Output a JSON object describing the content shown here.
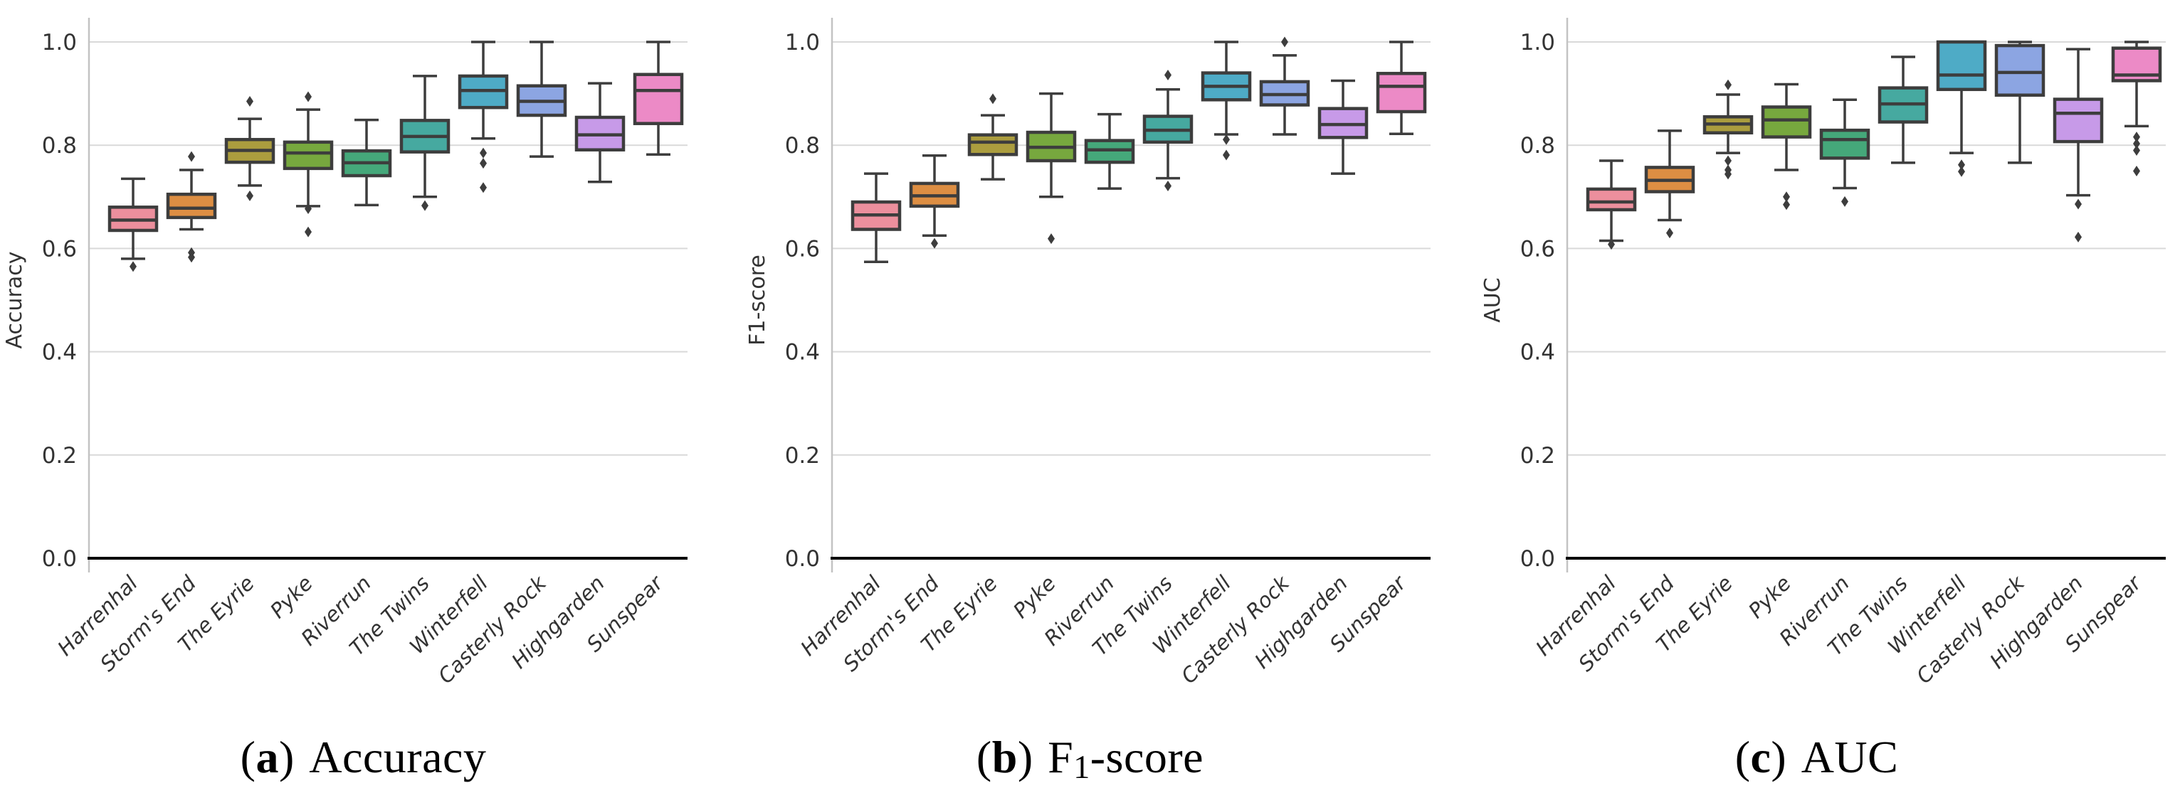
{
  "page": {
    "background": "#ffffff"
  },
  "style": {
    "edge_color": "#3d3d3d",
    "median_color": "#3d3d3d",
    "whisker_color": "#3d3d3d",
    "flier_color": "#3d3d3d",
    "grid_color": "#d9d9d9",
    "spine_color": "#c3c3c3",
    "baseline_color": "#000000",
    "tick_text_color": "#333333",
    "label_text_color": "#333333",
    "palette": [
      "#ec8f9d",
      "#dd8e43",
      "#ab9d3e",
      "#77a83e",
      "#45a87a",
      "#46a9a0",
      "#4eabc6",
      "#8ca5e2",
      "#c79ae8",
      "#ec8ac6"
    ]
  },
  "categories": [
    "Harrenhal",
    "Storm's End",
    "The Eyrie",
    "Pyke",
    "Riverrun",
    "The Twins",
    "Winterfell",
    "Casterly Rock",
    "Highgarden",
    "Sunspear"
  ],
  "y_axis": {
    "range": [
      0.0,
      1.05
    ],
    "ticks": [
      {
        "label": "1.0",
        "value": 1.0
      },
      {
        "label": "0.8",
        "value": 0.8
      },
      {
        "label": "0.6",
        "value": 0.6
      },
      {
        "label": "0.4",
        "value": 0.4
      },
      {
        "label": "0.2",
        "value": 0.2
      },
      {
        "label": "0.0",
        "value": 0.0
      }
    ]
  },
  "chart_data": [
    {
      "type": "box",
      "panel": "a",
      "ylabel": "Accuracy",
      "caption": {
        "open": "(",
        "index": "a",
        "close": ")",
        "prefix": "Accuracy",
        "sub": "",
        "suffix": ""
      },
      "ylim": [
        0.0,
        1.05
      ],
      "grid": true,
      "legend": "none",
      "categories": [
        "Harrenhal",
        "Storm's End",
        "The Eyrie",
        "Pyke",
        "Riverrun",
        "The Twins",
        "Winterfell",
        "Casterly Rock",
        "Highgarden",
        "Sunspear"
      ],
      "series": [
        {
          "name": "Harrenhal",
          "color": "#ec8f9d",
          "whislo": 0.58,
          "q1": 0.635,
          "med": 0.655,
          "q3": 0.68,
          "whishi": 0.735,
          "outliers": [
            0.565
          ]
        },
        {
          "name": "Storm's End",
          "color": "#dd8e43",
          "whislo": 0.637,
          "q1": 0.66,
          "med": 0.678,
          "q3": 0.705,
          "whishi": 0.752,
          "outliers": [
            0.778,
            0.592,
            0.583
          ]
        },
        {
          "name": "The Eyrie",
          "color": "#ab9d3e",
          "whislo": 0.722,
          "q1": 0.767,
          "med": 0.79,
          "q3": 0.811,
          "whishi": 0.851,
          "outliers": [
            0.885,
            0.702
          ]
        },
        {
          "name": "Pyke",
          "color": "#77a83e",
          "whislo": 0.682,
          "q1": 0.755,
          "med": 0.785,
          "q3": 0.806,
          "whishi": 0.869,
          "outliers": [
            0.894,
            0.677,
            0.632
          ]
        },
        {
          "name": "Riverrun",
          "color": "#45a87a",
          "whislo": 0.684,
          "q1": 0.741,
          "med": 0.766,
          "q3": 0.789,
          "whishi": 0.849,
          "outliers": []
        },
        {
          "name": "The Twins",
          "color": "#46a9a0",
          "whislo": 0.7,
          "q1": 0.787,
          "med": 0.817,
          "q3": 0.848,
          "whishi": 0.934,
          "outliers": [
            0.683
          ]
        },
        {
          "name": "Winterfell",
          "color": "#4eabc6",
          "whislo": 0.813,
          "q1": 0.873,
          "med": 0.906,
          "q3": 0.934,
          "whishi": 1.0,
          "outliers": [
            0.785,
            0.765,
            0.718
          ]
        },
        {
          "name": "Casterly Rock",
          "color": "#8ca5e2",
          "whislo": 0.778,
          "q1": 0.858,
          "med": 0.885,
          "q3": 0.915,
          "whishi": 1.0,
          "outliers": []
        },
        {
          "name": "Highgarden",
          "color": "#c79ae8",
          "whislo": 0.729,
          "q1": 0.791,
          "med": 0.82,
          "q3": 0.854,
          "whishi": 0.92,
          "outliers": []
        },
        {
          "name": "Sunspear",
          "color": "#ec8ac6",
          "whislo": 0.782,
          "q1": 0.842,
          "med": 0.906,
          "q3": 0.937,
          "whishi": 1.0,
          "outliers": []
        }
      ]
    },
    {
      "type": "box",
      "panel": "b",
      "ylabel": "F1-score",
      "caption": {
        "open": "(",
        "index": "b",
        "close": ")",
        "prefix": "F",
        "sub": "1",
        "suffix": "-score"
      },
      "ylim": [
        0.0,
        1.05
      ],
      "grid": true,
      "legend": "none",
      "categories": [
        "Harrenhal",
        "Storm's End",
        "The Eyrie",
        "Pyke",
        "Riverrun",
        "The Twins",
        "Winterfell",
        "Casterly Rock",
        "Highgarden",
        "Sunspear"
      ],
      "series": [
        {
          "name": "Harrenhal",
          "color": "#ec8f9d",
          "whislo": 0.574,
          "q1": 0.637,
          "med": 0.665,
          "q3": 0.69,
          "whishi": 0.745,
          "outliers": []
        },
        {
          "name": "Storm's End",
          "color": "#dd8e43",
          "whislo": 0.625,
          "q1": 0.682,
          "med": 0.702,
          "q3": 0.726,
          "whishi": 0.78,
          "outliers": [
            0.61
          ]
        },
        {
          "name": "The Eyrie",
          "color": "#ab9d3e",
          "whislo": 0.734,
          "q1": 0.782,
          "med": 0.806,
          "q3": 0.82,
          "whishi": 0.858,
          "outliers": [
            0.89
          ]
        },
        {
          "name": "Pyke",
          "color": "#77a83e",
          "whislo": 0.7,
          "q1": 0.77,
          "med": 0.796,
          "q3": 0.825,
          "whishi": 0.9,
          "outliers": [
            0.619
          ]
        },
        {
          "name": "Riverrun",
          "color": "#45a87a",
          "whislo": 0.716,
          "q1": 0.767,
          "med": 0.791,
          "q3": 0.809,
          "whishi": 0.86,
          "outliers": []
        },
        {
          "name": "The Twins",
          "color": "#46a9a0",
          "whislo": 0.736,
          "q1": 0.806,
          "med": 0.829,
          "q3": 0.856,
          "whishi": 0.908,
          "outliers": [
            0.936,
            0.721
          ]
        },
        {
          "name": "Winterfell",
          "color": "#4eabc6",
          "whislo": 0.821,
          "q1": 0.888,
          "med": 0.914,
          "q3": 0.94,
          "whishi": 1.0,
          "outliers": [
            0.811,
            0.781
          ]
        },
        {
          "name": "Casterly Rock",
          "color": "#8ca5e2",
          "whislo": 0.821,
          "q1": 0.878,
          "med": 0.898,
          "q3": 0.923,
          "whishi": 0.974,
          "outliers": [
            1.0
          ]
        },
        {
          "name": "Highgarden",
          "color": "#c79ae8",
          "whislo": 0.745,
          "q1": 0.815,
          "med": 0.84,
          "q3": 0.871,
          "whishi": 0.925,
          "outliers": []
        },
        {
          "name": "Sunspear",
          "color": "#ec8ac6",
          "whislo": 0.822,
          "q1": 0.865,
          "med": 0.914,
          "q3": 0.939,
          "whishi": 1.0,
          "outliers": []
        }
      ]
    },
    {
      "type": "box",
      "panel": "c",
      "ylabel": "AUC",
      "caption": {
        "open": "(",
        "index": "c",
        "close": ")",
        "prefix": "AUC",
        "sub": "",
        "suffix": ""
      },
      "ylim": [
        0.0,
        1.05
      ],
      "grid": true,
      "legend": "none",
      "categories": [
        "Harrenhal",
        "Storm's End",
        "The Eyrie",
        "Pyke",
        "Riverrun",
        "The Twins",
        "Winterfell",
        "Casterly Rock",
        "Highgarden",
        "Sunspear"
      ],
      "series": [
        {
          "name": "Harrenhal",
          "color": "#ec8f9d",
          "whislo": 0.615,
          "q1": 0.675,
          "med": 0.69,
          "q3": 0.715,
          "whishi": 0.77,
          "outliers": [
            0.608
          ]
        },
        {
          "name": "Storm's End",
          "color": "#dd8e43",
          "whislo": 0.655,
          "q1": 0.71,
          "med": 0.732,
          "q3": 0.757,
          "whishi": 0.828,
          "outliers": [
            0.63
          ]
        },
        {
          "name": "The Eyrie",
          "color": "#ab9d3e",
          "whislo": 0.785,
          "q1": 0.824,
          "med": 0.841,
          "q3": 0.855,
          "whishi": 0.898,
          "outliers": [
            0.917,
            0.77,
            0.752,
            0.744
          ]
        },
        {
          "name": "Pyke",
          "color": "#77a83e",
          "whislo": 0.752,
          "q1": 0.816,
          "med": 0.849,
          "q3": 0.874,
          "whishi": 0.918,
          "outliers": [
            0.7,
            0.685
          ]
        },
        {
          "name": "Riverrun",
          "color": "#45a87a",
          "whislo": 0.717,
          "q1": 0.775,
          "med": 0.811,
          "q3": 0.829,
          "whishi": 0.888,
          "outliers": [
            0.691
          ]
        },
        {
          "name": "The Twins",
          "color": "#46a9a0",
          "whislo": 0.766,
          "q1": 0.845,
          "med": 0.88,
          "q3": 0.911,
          "whishi": 0.971,
          "outliers": []
        },
        {
          "name": "Winterfell",
          "color": "#4eabc6",
          "whislo": 0.785,
          "q1": 0.908,
          "med": 0.936,
          "q3": 1.0,
          "whishi": 1.0,
          "outliers": [
            0.762,
            0.749
          ]
        },
        {
          "name": "Casterly Rock",
          "color": "#8ca5e2",
          "whislo": 0.766,
          "q1": 0.897,
          "med": 0.941,
          "q3": 0.993,
          "whishi": 1.0,
          "outliers": []
        },
        {
          "name": "Highgarden",
          "color": "#c79ae8",
          "whislo": 0.703,
          "q1": 0.807,
          "med": 0.862,
          "q3": 0.889,
          "whishi": 0.986,
          "outliers": [
            0.686,
            0.622
          ]
        },
        {
          "name": "Sunspear",
          "color": "#ec8ac6",
          "whislo": 0.837,
          "q1": 0.925,
          "med": 0.936,
          "q3": 0.988,
          "whishi": 1.0,
          "outliers": [
            0.816,
            0.803,
            0.79,
            0.75
          ]
        }
      ]
    }
  ]
}
